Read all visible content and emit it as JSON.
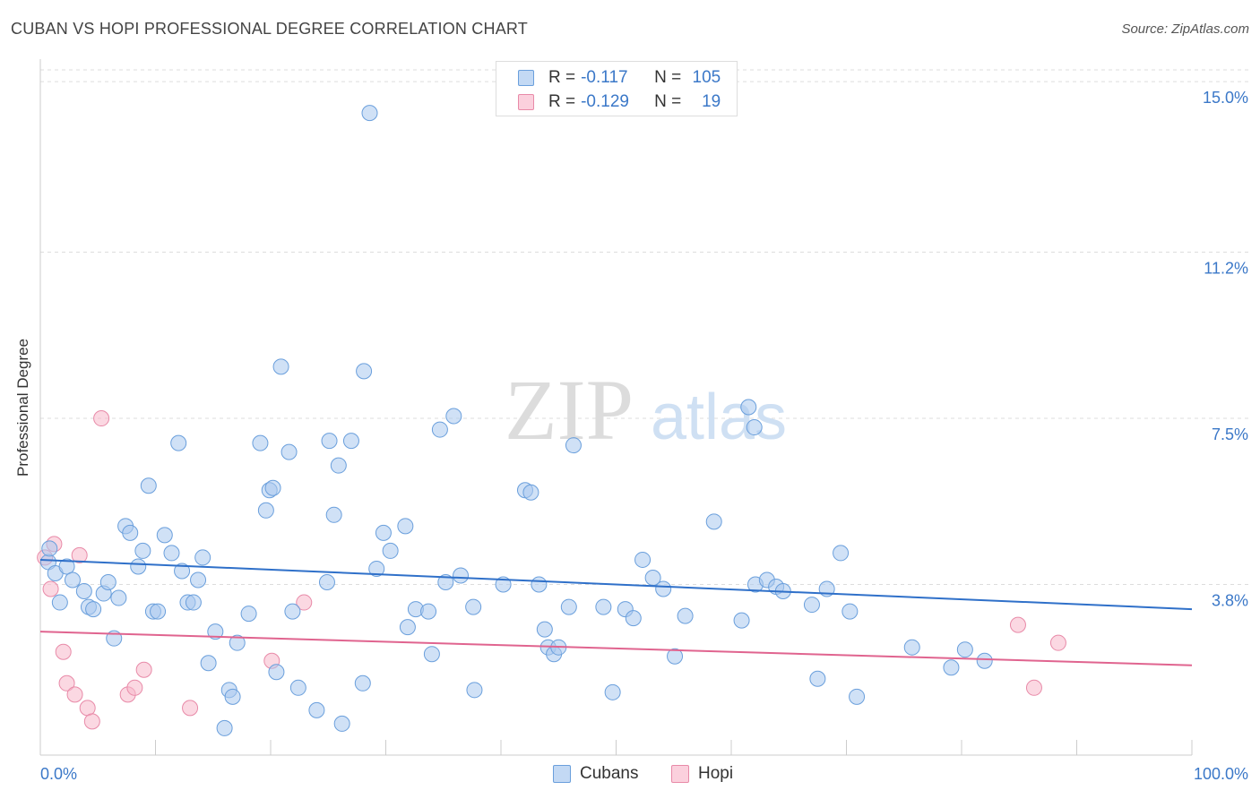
{
  "header": {
    "title": "CUBAN VS HOPI PROFESSIONAL DEGREE CORRELATION CHART",
    "source": "Source: ZipAtlas.com"
  },
  "watermark": {
    "zip": "ZIP",
    "atlas": "atlas"
  },
  "legend": {
    "rows": [
      {
        "r_label": "R =",
        "r_value": "-0.117",
        "n_label": "N =",
        "n_value": "105"
      },
      {
        "r_label": "R =",
        "r_value": "-0.129",
        "n_label": "N =",
        "n_value": "19"
      }
    ],
    "bottom": [
      {
        "label": "Cubans"
      },
      {
        "label": "Hopi"
      }
    ]
  },
  "colors": {
    "cubans_fill": "#a9c8ef",
    "cubans_stroke": "#6a9fdc",
    "cubans_line": "#2f70c9",
    "hopi_fill": "#f7b8cb",
    "hopi_stroke": "#e88aa8",
    "hopi_line": "#e0648f",
    "tick_text": "#3b78c8",
    "grid": "#dddddd"
  },
  "chart_data": {
    "type": "scatter",
    "title": "CUBAN VS HOPI PROFESSIONAL DEGREE CORRELATION CHART",
    "xlabel": "",
    "ylabel": "Professional Degree",
    "xlim": [
      0,
      100
    ],
    "ylim": [
      0,
      15.5
    ],
    "x_tick_labels": [
      "0.0%",
      "100.0%"
    ],
    "y_ticks": [
      3.8,
      7.5,
      11.2,
      15.0
    ],
    "y_tick_labels": [
      "3.8%",
      "7.5%",
      "11.2%",
      "15.0%"
    ],
    "grid": "horizontal dashed",
    "series": [
      {
        "name": "Cubans",
        "R": -0.117,
        "N": 105,
        "trend": {
          "x": [
            0,
            100
          ],
          "y": [
            4.35,
            3.25
          ]
        },
        "points": [
          [
            0.7,
            4.3
          ],
          [
            0.8,
            4.6
          ],
          [
            1.3,
            4.05
          ],
          [
            1.7,
            3.4
          ],
          [
            2.3,
            4.2
          ],
          [
            2.8,
            3.9
          ],
          [
            3.8,
            3.65
          ],
          [
            4.2,
            3.3
          ],
          [
            4.6,
            3.25
          ],
          [
            5.5,
            3.6
          ],
          [
            5.9,
            3.85
          ],
          [
            6.4,
            2.6
          ],
          [
            6.8,
            3.5
          ],
          [
            7.4,
            5.1
          ],
          [
            7.8,
            4.95
          ],
          [
            8.5,
            4.2
          ],
          [
            8.9,
            4.55
          ],
          [
            9.4,
            6.0
          ],
          [
            9.8,
            3.2
          ],
          [
            10.2,
            3.2
          ],
          [
            10.8,
            4.9
          ],
          [
            11.4,
            4.5
          ],
          [
            12.0,
            6.95
          ],
          [
            12.3,
            4.1
          ],
          [
            12.8,
            3.4
          ],
          [
            13.3,
            3.4
          ],
          [
            13.7,
            3.9
          ],
          [
            14.1,
            4.4
          ],
          [
            14.6,
            2.05
          ],
          [
            15.2,
            2.75
          ],
          [
            16.0,
            0.6
          ],
          [
            16.4,
            1.45
          ],
          [
            16.7,
            1.3
          ],
          [
            17.1,
            2.5
          ],
          [
            18.1,
            3.15
          ],
          [
            19.1,
            6.95
          ],
          [
            19.6,
            5.45
          ],
          [
            19.9,
            5.9
          ],
          [
            20.2,
            5.95
          ],
          [
            20.5,
            1.85
          ],
          [
            20.9,
            8.65
          ],
          [
            21.6,
            6.75
          ],
          [
            21.9,
            3.2
          ],
          [
            22.4,
            1.5
          ],
          [
            24.0,
            1.0
          ],
          [
            24.9,
            3.85
          ],
          [
            25.5,
            5.35
          ],
          [
            25.9,
            6.45
          ],
          [
            26.2,
            0.7
          ],
          [
            27.0,
            7.0
          ],
          [
            28.0,
            1.6
          ],
          [
            28.1,
            8.55
          ],
          [
            29.2,
            4.15
          ],
          [
            29.8,
            4.95
          ],
          [
            30.4,
            4.55
          ],
          [
            31.7,
            5.1
          ],
          [
            31.9,
            2.85
          ],
          [
            32.6,
            3.25
          ],
          [
            33.7,
            3.2
          ],
          [
            34.0,
            2.25
          ],
          [
            34.7,
            7.25
          ],
          [
            35.2,
            3.85
          ],
          [
            35.9,
            7.55
          ],
          [
            36.5,
            4.0
          ],
          [
            37.6,
            3.3
          ],
          [
            37.7,
            1.45
          ],
          [
            40.2,
            3.8
          ],
          [
            42.1,
            5.9
          ],
          [
            42.6,
            5.85
          ],
          [
            43.3,
            3.8
          ],
          [
            43.8,
            2.8
          ],
          [
            44.1,
            2.4
          ],
          [
            44.6,
            2.25
          ],
          [
            45.0,
            2.4
          ],
          [
            45.9,
            3.3
          ],
          [
            46.3,
            6.9
          ],
          [
            48.9,
            3.3
          ],
          [
            49.7,
            1.4
          ],
          [
            50.8,
            3.25
          ],
          [
            51.5,
            3.05
          ],
          [
            52.3,
            4.35
          ],
          [
            53.2,
            3.95
          ],
          [
            54.1,
            3.7
          ],
          [
            55.1,
            2.2
          ],
          [
            56.0,
            3.1
          ],
          [
            58.5,
            5.2
          ],
          [
            60.9,
            3.0
          ],
          [
            61.5,
            7.75
          ],
          [
            62.0,
            7.3
          ],
          [
            62.1,
            3.8
          ],
          [
            63.1,
            3.9
          ],
          [
            63.9,
            3.75
          ],
          [
            64.5,
            3.65
          ],
          [
            67.0,
            3.35
          ],
          [
            67.5,
            1.7
          ],
          [
            68.3,
            3.7
          ],
          [
            69.5,
            4.5
          ],
          [
            70.3,
            3.2
          ],
          [
            70.9,
            1.3
          ],
          [
            75.7,
            2.4
          ],
          [
            79.1,
            1.95
          ],
          [
            80.3,
            2.35
          ],
          [
            82.0,
            2.1
          ],
          [
            28.6,
            14.3
          ],
          [
            25.1,
            7.0
          ]
        ]
      },
      {
        "name": "Hopi",
        "R": -0.129,
        "N": 19,
        "trend": {
          "x": [
            0,
            100
          ],
          "y": [
            2.75,
            2.0
          ]
        },
        "points": [
          [
            0.4,
            4.4
          ],
          [
            0.9,
            3.7
          ],
          [
            1.2,
            4.7
          ],
          [
            2.0,
            2.3
          ],
          [
            2.3,
            1.6
          ],
          [
            3.0,
            1.35
          ],
          [
            3.4,
            4.45
          ],
          [
            4.1,
            1.05
          ],
          [
            4.5,
            0.75
          ],
          [
            5.3,
            7.5
          ],
          [
            7.6,
            1.35
          ],
          [
            8.2,
            1.5
          ],
          [
            9.0,
            1.9
          ],
          [
            13.0,
            1.05
          ],
          [
            20.1,
            2.1
          ],
          [
            22.9,
            3.4
          ],
          [
            84.9,
            2.9
          ],
          [
            86.3,
            1.5
          ],
          [
            88.4,
            2.5
          ]
        ]
      }
    ]
  }
}
